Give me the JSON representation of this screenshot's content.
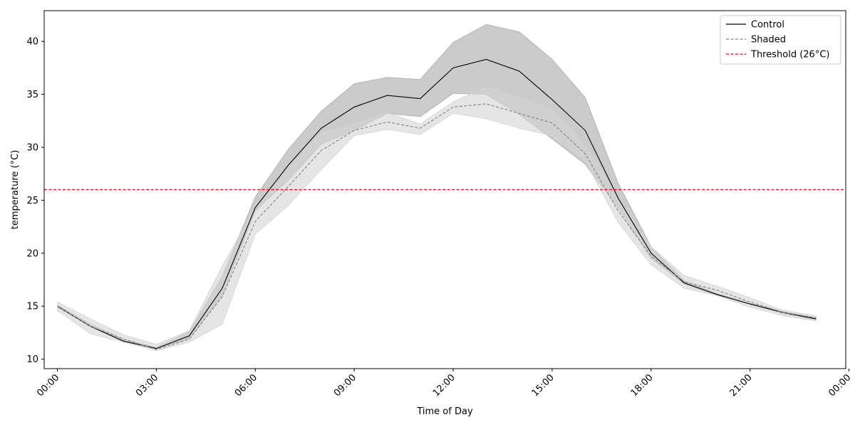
{
  "chart_data": {
    "type": "line",
    "title": "",
    "xlabel": "Time of Day",
    "ylabel": "temperature (°C)",
    "x": [
      0,
      1,
      2,
      3,
      4,
      5,
      6,
      7,
      8,
      9,
      10,
      11,
      12,
      13,
      14,
      15,
      16,
      17,
      18,
      19,
      20,
      21,
      22,
      23
    ],
    "xlim": [
      -0.4,
      23.9
    ],
    "ylim": [
      9.1,
      42.9
    ],
    "xticks": [
      {
        "value": 0,
        "label": "00:00"
      },
      {
        "value": 3,
        "label": "03:00"
      },
      {
        "value": 6,
        "label": "06:00"
      },
      {
        "value": 9,
        "label": "09:00"
      },
      {
        "value": 12,
        "label": "12:00"
      },
      {
        "value": 15,
        "label": "15:00"
      },
      {
        "value": 18,
        "label": "18:00"
      },
      {
        "value": 21,
        "label": "21:00"
      },
      {
        "value": 24,
        "label": "00:00"
      }
    ],
    "yticks": [
      10,
      15,
      20,
      25,
      30,
      35,
      40
    ],
    "grid": false,
    "legend_position": "top-right",
    "series": [
      {
        "name": "Control",
        "color": "#000000",
        "dash": "solid",
        "values": [
          15.0,
          13.1,
          11.7,
          11.0,
          12.2,
          16.7,
          24.3,
          28.3,
          31.8,
          33.8,
          34.9,
          34.6,
          37.5,
          38.3,
          37.2,
          34.5,
          31.6,
          25.2,
          20.0,
          17.2,
          16.1,
          15.2,
          14.4,
          13.8
        ],
        "band_lower": [
          14.9,
          13.1,
          11.7,
          11.0,
          11.9,
          16.0,
          24.0,
          26.9,
          30.3,
          31.6,
          33.2,
          32.9,
          35.1,
          35.0,
          33.1,
          30.8,
          28.4,
          24.3,
          19.5,
          17.1,
          16.0,
          15.2,
          14.3,
          13.7
        ],
        "band_upper": [
          15.1,
          13.3,
          11.9,
          11.1,
          12.6,
          17.8,
          25.3,
          29.8,
          33.4,
          36.0,
          36.6,
          36.4,
          39.9,
          41.6,
          40.9,
          38.3,
          34.7,
          26.6,
          20.6,
          17.4,
          16.2,
          15.3,
          14.5,
          13.9
        ]
      },
      {
        "name": "Shaded",
        "color": "#808080",
        "dash": "dashed",
        "values": [
          15.0,
          13.1,
          11.9,
          10.9,
          11.9,
          15.9,
          23.0,
          26.3,
          29.7,
          31.6,
          32.4,
          31.8,
          33.8,
          34.1,
          33.2,
          32.3,
          29.4,
          24.0,
          19.7,
          17.3,
          16.5,
          15.4,
          14.4,
          13.9
        ],
        "band_lower": [
          14.6,
          12.4,
          11.6,
          10.8,
          11.6,
          13.3,
          21.8,
          24.5,
          27.9,
          31.1,
          31.7,
          31.2,
          33.2,
          32.7,
          31.8,
          31.1,
          28.7,
          22.9,
          18.9,
          16.7,
          16.0,
          14.9,
          14.1,
          13.6
        ],
        "band_upper": [
          15.4,
          13.8,
          12.3,
          11.4,
          12.7,
          18.8,
          24.3,
          28.3,
          31.4,
          32.2,
          33.3,
          32.2,
          34.3,
          35.7,
          34.7,
          33.6,
          30.2,
          25.3,
          20.6,
          17.9,
          16.9,
          15.8,
          14.6,
          14.1
        ]
      }
    ],
    "reference_lines": [
      {
        "name": "Threshold (26°C)",
        "value": 26,
        "color": "#ff0000",
        "dash": "dashed"
      }
    ],
    "band_colors": {
      "control": "#a9a9a9",
      "shaded": "#d3d3d3"
    }
  }
}
